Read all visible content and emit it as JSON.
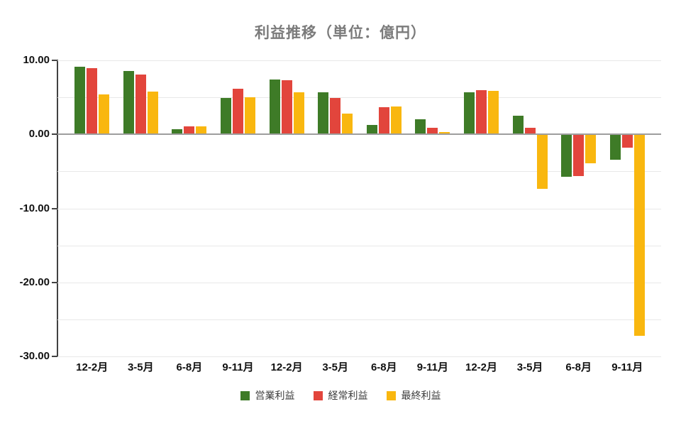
{
  "title": "利益推移（単位：億円）",
  "colors": {
    "operating": "#3e7b27",
    "ordinary": "#e2453c",
    "net": "#f9b70f",
    "grid": "#e8e8e8",
    "zero_line": "#9e9e9e",
    "axis": "#424242",
    "title_text": "#7b7b7b",
    "label_text": "#111111",
    "legend_text": "#3c3c3c"
  },
  "chart_data": {
    "type": "bar",
    "title": "利益推移（単位：億円）",
    "categories": [
      "12-2月",
      "3-5月",
      "6-8月",
      "9-11月",
      "12-2月",
      "3-5月",
      "6-8月",
      "9-11月",
      "12-2月",
      "3-5月",
      "6-8月",
      "9-11月"
    ],
    "series": [
      {
        "name": "営業利益",
        "color_key": "operating",
        "values": [
          9.1,
          8.6,
          0.7,
          4.9,
          7.4,
          5.7,
          1.3,
          2.0,
          5.7,
          2.5,
          -5.7,
          -3.4
        ]
      },
      {
        "name": "経常利益",
        "color_key": "ordinary",
        "values": [
          8.9,
          8.1,
          1.1,
          6.2,
          7.3,
          4.9,
          3.7,
          0.9,
          6.0,
          0.9,
          -5.6,
          -1.8
        ]
      },
      {
        "name": "最終利益",
        "color_key": "net",
        "values": [
          5.4,
          5.8,
          1.1,
          5.0,
          5.7,
          2.8,
          3.8,
          0.3,
          5.9,
          -7.4,
          -3.9,
          -27.2
        ]
      }
    ],
    "xlabel": "",
    "ylabel": "",
    "ylim": [
      -30,
      10
    ],
    "y_major_ticks": [
      {
        "label": "10.00",
        "value": 10
      },
      {
        "label": "0.00",
        "value": 0
      },
      {
        "label": "-10.00",
        "value": -10
      },
      {
        "label": "-20.00",
        "value": -20
      },
      {
        "label": "-30.00",
        "value": -30
      }
    ],
    "y_minor_values": [
      5,
      -5,
      -15,
      -25
    ],
    "grid": true,
    "legend_position": "bottom"
  }
}
